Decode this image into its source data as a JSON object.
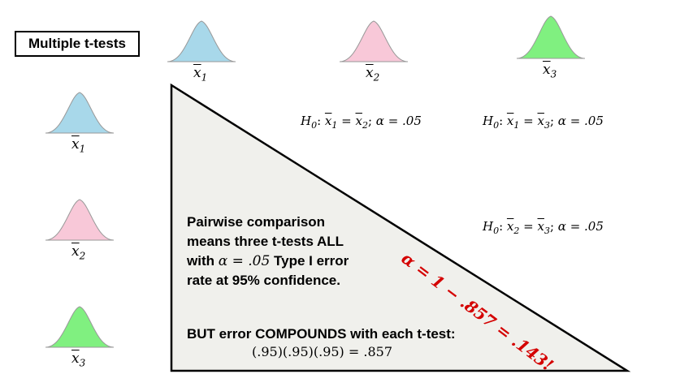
{
  "title": "Multiple t-tests",
  "top_labels": [
    {
      "var": "x",
      "sub": "1",
      "color": "#a8d8ea"
    },
    {
      "var": "x",
      "sub": "2",
      "color": "#f8c8d8"
    },
    {
      "var": "x",
      "sub": "3",
      "color": "#80f080"
    }
  ],
  "side_labels": [
    {
      "var": "x",
      "sub": "1",
      "color": "#a8d8ea"
    },
    {
      "var": "x",
      "sub": "2",
      "color": "#f8c8d8"
    },
    {
      "var": "x",
      "sub": "3",
      "color": "#80f080"
    }
  ],
  "hypotheses": [
    {
      "h": "H",
      "h_sub": "0",
      "a": "x",
      "a_sub": "1",
      "b": "x",
      "b_sub": "2",
      "alpha": "α = .05"
    },
    {
      "h": "H",
      "h_sub": "0",
      "a": "x",
      "a_sub": "1",
      "b": "x",
      "b_sub": "3",
      "alpha": "α = .05"
    },
    {
      "h": "H",
      "h_sub": "0",
      "a": "x",
      "a_sub": "2",
      "b": "x",
      "b_sub": "3",
      "alpha": "α = .05"
    }
  ],
  "pairwise_text": {
    "line1": "Pairwise comparison",
    "line2_a": "means ",
    "line2_b": "three t-tests ALL",
    "line3_a": "with ",
    "line3_alpha": "α = .05",
    "line3_b": " Type I error",
    "line4": "rate at 95% confidence."
  },
  "compound_text": "BUT error COMPOUNDS with each t-test:",
  "calc_text": "(.95)(.95)(.95) = .857",
  "alpha_result": "α = 1 − .857 = .143!",
  "colors": {
    "triangle_fill": "#f0f0ec",
    "red": "#d40000"
  }
}
